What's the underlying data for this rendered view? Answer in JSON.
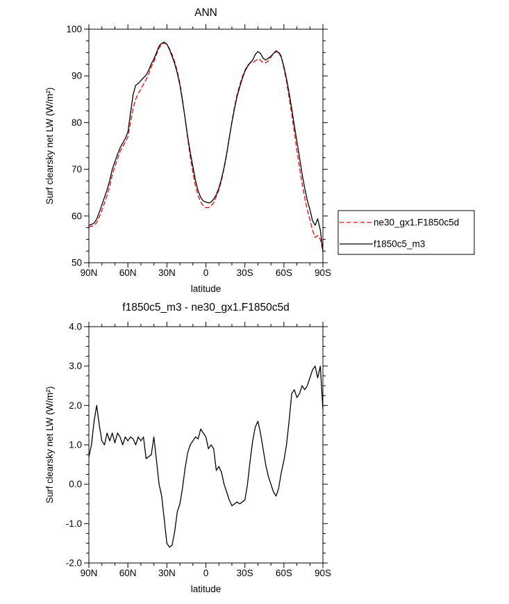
{
  "page": {
    "background": "#ffffff",
    "foreground": "#000000"
  },
  "chart_data": [
    {
      "id": "ann",
      "type": "line",
      "title": "ANN",
      "xlabel": "latitude",
      "ylabel": "Surf clearsky net LW (W/m²)",
      "xlim": [
        90,
        -90
      ],
      "ylim": [
        50,
        100
      ],
      "x_major_ticks": [
        90,
        60,
        30,
        0,
        -30,
        -60,
        -90
      ],
      "x_tick_labels": [
        "90N",
        "60N",
        "30N",
        "0",
        "30S",
        "60S",
        "90S"
      ],
      "x_minor_step": 10,
      "y_major_ticks": [
        50,
        60,
        70,
        80,
        90,
        100
      ],
      "y_tick_labels": [
        "50",
        "60",
        "70",
        "80",
        "90",
        "100"
      ],
      "y_minor_step": 2.5,
      "grid": false,
      "legend_position": "outside-right",
      "x": [
        90,
        88,
        86,
        84,
        82,
        80,
        78,
        76,
        74,
        72,
        70,
        68,
        66,
        64,
        62,
        60,
        58,
        56,
        54,
        52,
        50,
        48,
        46,
        44,
        42,
        40,
        38,
        36,
        34,
        32,
        30,
        28,
        26,
        24,
        22,
        20,
        18,
        16,
        14,
        12,
        10,
        8,
        6,
        4,
        2,
        0,
        -2,
        -4,
        -6,
        -8,
        -10,
        -12,
        -14,
        -16,
        -18,
        -20,
        -22,
        -24,
        -26,
        -28,
        -30,
        -32,
        -34,
        -36,
        -38,
        -40,
        -42,
        -44,
        -46,
        -48,
        -50,
        -52,
        -54,
        -56,
        -58,
        -60,
        -62,
        -64,
        -66,
        -68,
        -70,
        -72,
        -74,
        -76,
        -78,
        -80,
        -82,
        -84,
        -86,
        -88,
        -90
      ],
      "series": [
        {
          "name": "ne30_gx1.F1850c5d",
          "color": "#ff0000",
          "line_style": "dashed",
          "y": [
            57.6,
            57.8,
            58.0,
            58.6,
            59.8,
            61.2,
            62.8,
            64.4,
            66.4,
            68.8,
            70.6,
            72.2,
            73.8,
            74.8,
            75.8,
            77.0,
            80.0,
            83.0,
            85.0,
            86.2,
            87.2,
            88.2,
            89.2,
            90.4,
            92.0,
            93.0,
            94.6,
            96.0,
            96.8,
            97.0,
            96.8,
            95.8,
            94.6,
            93.0,
            91.0,
            88.4,
            85.0,
            81.0,
            76.6,
            72.6,
            69.4,
            66.4,
            64.4,
            63.0,
            62.2,
            61.8,
            61.8,
            62.2,
            62.8,
            64.2,
            65.6,
            67.6,
            70.2,
            73.2,
            76.6,
            80.2,
            83.4,
            86.0,
            88.0,
            89.8,
            91.2,
            92.2,
            92.8,
            92.8,
            93.2,
            93.6,
            93.4,
            92.8,
            92.8,
            93.2,
            94.0,
            94.8,
            95.4,
            95.2,
            94.2,
            91.6,
            88.8,
            85.4,
            81.8,
            78.0,
            74.0,
            70.4,
            67.0,
            64.0,
            61.4,
            59.2,
            57.0,
            55.4,
            55.8,
            55.0,
            52.6
          ]
        },
        {
          "name": "f1850c5_m3",
          "color": "#000000",
          "line_style": "solid",
          "y": [
            58.0,
            58.2,
            58.5,
            59.3,
            60.8,
            62.4,
            64.0,
            65.6,
            67.6,
            70.0,
            71.6,
            73.2,
            74.6,
            75.6,
            76.6,
            78.0,
            82.0,
            86.0,
            88.0,
            88.4,
            89.0,
            89.6,
            90.2,
            91.2,
            92.6,
            93.6,
            95.0,
            96.4,
            97.0,
            97.2,
            96.8,
            95.6,
            94.2,
            92.6,
            90.6,
            88.0,
            84.6,
            81.0,
            77.0,
            73.6,
            70.6,
            67.6,
            65.4,
            64.0,
            63.2,
            63.0,
            62.8,
            63.0,
            63.6,
            64.6,
            66.0,
            68.0,
            70.4,
            73.4,
            76.8,
            80.0,
            83.0,
            85.6,
            87.6,
            89.4,
            91.0,
            92.0,
            92.8,
            93.4,
            94.6,
            95.2,
            94.8,
            93.8,
            93.4,
            93.8,
            94.2,
            94.8,
            95.2,
            95.0,
            94.0,
            92.0,
            89.4,
            86.4,
            83.0,
            79.4,
            76.0,
            72.6,
            69.0,
            66.0,
            63.4,
            61.4,
            59.0,
            58.0,
            59.4,
            57.0,
            52.4
          ]
        }
      ],
      "legend": {
        "entries": [
          {
            "label": "ne30_gx1.F1850c5d",
            "color": "#ff0000",
            "line_style": "dashed"
          },
          {
            "label": "f1850c5_m3",
            "color": "#000000",
            "line_style": "solid"
          }
        ]
      }
    },
    {
      "id": "diff",
      "type": "line",
      "title": "f1850c5_m3 - ne30_gx1.F1850c5d",
      "xlabel": "latitude",
      "ylabel": "Surf clearsky net LW (W/m²)",
      "xlim": [
        90,
        -90
      ],
      "ylim": [
        -2,
        4
      ],
      "x_major_ticks": [
        90,
        60,
        30,
        0,
        -30,
        -60,
        -90
      ],
      "x_tick_labels": [
        "90N",
        "60N",
        "30N",
        "0",
        "30S",
        "60S",
        "90S"
      ],
      "x_minor_step": 10,
      "y_major_ticks": [
        -2,
        -1,
        0,
        1,
        2,
        3,
        4
      ],
      "y_tick_labels": [
        "-2.0",
        "-1.0",
        "0.0",
        "1.0",
        "2.0",
        "3.0",
        "4.0"
      ],
      "y_minor_step": 0.25,
      "grid": false,
      "x": [
        90,
        88,
        86,
        84,
        82,
        80,
        78,
        76,
        74,
        72,
        70,
        68,
        66,
        64,
        62,
        60,
        58,
        56,
        54,
        52,
        50,
        48,
        46,
        44,
        42,
        40,
        38,
        36,
        34,
        32,
        30,
        28,
        26,
        24,
        22,
        20,
        18,
        16,
        14,
        12,
        10,
        8,
        6,
        4,
        2,
        0,
        -2,
        -4,
        -6,
        -8,
        -10,
        -12,
        -14,
        -16,
        -18,
        -20,
        -22,
        -24,
        -26,
        -28,
        -30,
        -32,
        -34,
        -36,
        -38,
        -40,
        -42,
        -44,
        -46,
        -48,
        -50,
        -52,
        -54,
        -56,
        -58,
        -60,
        -62,
        -64,
        -66,
        -68,
        -70,
        -72,
        -74,
        -76,
        -78,
        -80,
        -82,
        -84,
        -86,
        -88,
        -90
      ],
      "series": [
        {
          "name": "f1850c5_m3 - ne30_gx1.F1850c5d",
          "color": "#000000",
          "line_style": "solid",
          "y": [
            0.7,
            1.0,
            1.6,
            2.0,
            1.5,
            1.1,
            1.0,
            1.3,
            1.1,
            1.3,
            1.05,
            1.3,
            1.2,
            1.0,
            1.2,
            1.1,
            1.2,
            1.15,
            1.0,
            1.2,
            1.1,
            1.2,
            0.65,
            0.7,
            0.75,
            1.2,
            0.6,
            0.0,
            -0.3,
            -0.9,
            -1.5,
            -1.6,
            -1.55,
            -1.2,
            -0.7,
            -0.5,
            -0.1,
            0.4,
            0.8,
            1.0,
            1.1,
            1.2,
            1.15,
            1.4,
            1.3,
            1.2,
            0.9,
            1.0,
            0.9,
            0.35,
            0.45,
            0.3,
            0.0,
            -0.2,
            -0.4,
            -0.55,
            -0.5,
            -0.45,
            -0.5,
            -0.45,
            -0.4,
            0.0,
            0.6,
            1.1,
            1.45,
            1.6,
            1.3,
            0.9,
            0.5,
            0.2,
            0.0,
            -0.2,
            -0.3,
            -0.1,
            0.3,
            0.6,
            1.0,
            1.6,
            2.3,
            2.4,
            2.2,
            2.3,
            2.5,
            2.4,
            2.5,
            2.7,
            2.9,
            3.0,
            2.7,
            3.0,
            1.9
          ]
        }
      ]
    }
  ]
}
